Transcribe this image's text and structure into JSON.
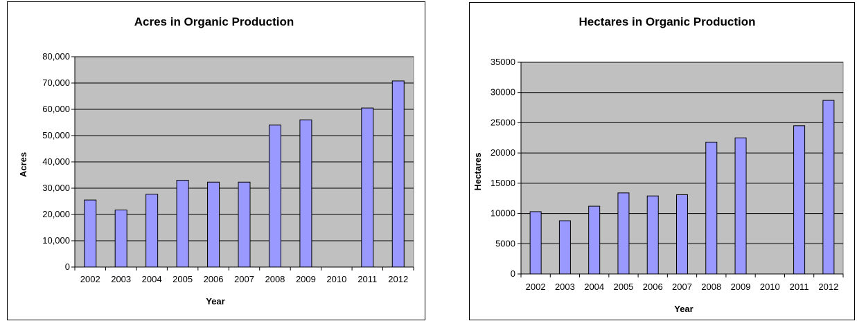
{
  "chart_data": [
    {
      "type": "bar",
      "title": "Acres in Organic Production",
      "xlabel": "Year",
      "ylabel": "Acres",
      "categories": [
        "2002",
        "2003",
        "2004",
        "2005",
        "2006",
        "2007",
        "2008",
        "2009",
        "2010",
        "2011",
        "2012"
      ],
      "values": [
        25500,
        21700,
        27700,
        33000,
        32300,
        32300,
        54000,
        56000,
        null,
        60500,
        70800
      ],
      "ylim": [
        0,
        80000
      ],
      "yticks": [
        0,
        10000,
        20000,
        30000,
        40000,
        50000,
        60000,
        70000,
        80000
      ],
      "ytick_labels": [
        "0",
        "10,000",
        "20,000",
        "30,000",
        "40,000",
        "50,000",
        "60,000",
        "70,000",
        "80,000"
      ],
      "grid": true,
      "colors": {
        "plot_bg": "#c0c0c0",
        "bar_fill": "#9999ff",
        "bar_stroke": "#000000",
        "grid": "#000000"
      }
    },
    {
      "type": "bar",
      "title": "Hectares in Organic Production",
      "xlabel": "Year",
      "ylabel": "Hectares",
      "categories": [
        "2002",
        "2003",
        "2004",
        "2005",
        "2006",
        "2007",
        "2008",
        "2009",
        "2010",
        "2011",
        "2012"
      ],
      "values": [
        10300,
        8800,
        11200,
        13400,
        12900,
        13100,
        21800,
        22500,
        null,
        24500,
        28700
      ],
      "ylim": [
        0,
        35000
      ],
      "yticks": [
        0,
        5000,
        10000,
        15000,
        20000,
        25000,
        30000,
        35000
      ],
      "ytick_labels": [
        "0",
        "5000",
        "10000",
        "15000",
        "20000",
        "25000",
        "30000",
        "35000"
      ],
      "grid": true,
      "colors": {
        "plot_bg": "#c0c0c0",
        "bar_fill": "#9999ff",
        "bar_stroke": "#000000",
        "grid": "#000000"
      }
    }
  ]
}
